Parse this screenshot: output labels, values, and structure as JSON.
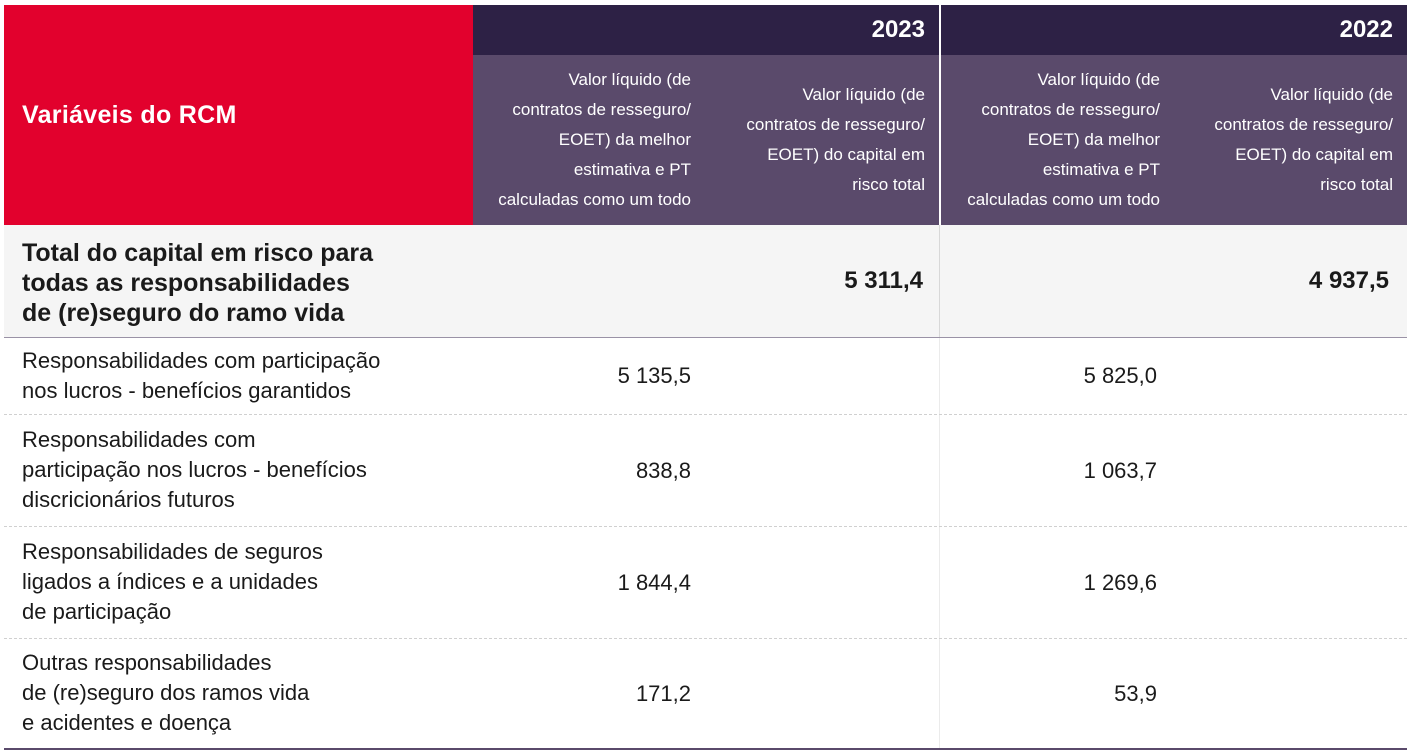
{
  "header": {
    "variables_label": "Variáveis do RCM",
    "years": [
      "2023",
      "2022"
    ],
    "col_a_label": "Valor líquido (de\ncontratos de resseguro/\nEOET) da melhor\nestimativa e PT\ncalculadas como um todo",
    "col_b_label": "Valor líquido (de\ncontratos de resseguro/\nEOET) do capital em\nrisco total"
  },
  "total": {
    "label": "Total do capital em risco para\ntodas as responsabilidades\nde (re)seguro do ramo vida",
    "value_2023": "5 311,4",
    "value_2022": "4 937,5"
  },
  "rows": [
    {
      "label": "Responsabilidades com participação\nnos lucros - benefícios garantidos",
      "v2023": "5 135,5",
      "v2022": "5 825,0"
    },
    {
      "label": "Responsabilidades com\nparticipação nos lucros - benefícios\ndiscricionários futuros",
      "v2023": "838,8",
      "v2022": "1 063,7"
    },
    {
      "label": "Responsabilidades de seguros\nligados a índices e a unidades\nde participação",
      "v2023": "1 844,4",
      "v2022": "1 269,6"
    },
    {
      "label": "Outras responsabilidades\nde (re)seguro dos ramos vida\ne acidentes e doença",
      "v2023": "171,2",
      "v2022": "53,9"
    }
  ],
  "colors": {
    "red": "#e2012d",
    "dark_purple": "#2d2145",
    "purple": "#5a4a6b"
  }
}
